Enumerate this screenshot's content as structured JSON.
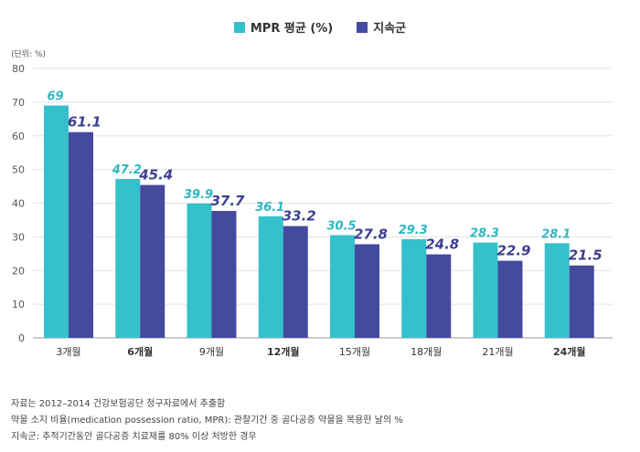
{
  "legend": {
    "items": [
      {
        "label": "MPR 평균 (%)",
        "color": "#35c0cb"
      },
      {
        "label": "지속군",
        "color": "#444a9e"
      }
    ]
  },
  "unit_label": "(단위: %)",
  "notes": [
    "자료는 2012–2014 건강보험공단 청구자료에서 추출함",
    "약물 소지 비율(medication possession ratio, MPR): 관찰기간 중 골다공증 약물을 복용한 날의 %",
    "지속군: 추적기간동안 골다공증 치료제를 80% 이상 처방한 경우"
  ],
  "chart_data": {
    "type": "bar",
    "categories": [
      "3개월",
      "6개월",
      "9개월",
      "12개월",
      "15개월",
      "18개월",
      "21개월",
      "24개월"
    ],
    "bold_categories": [
      "6개월",
      "12개월",
      "24개월"
    ],
    "series": [
      {
        "name": "MPR 평균 (%)",
        "color": "#35c0cb",
        "label_color": "#2fb6c2",
        "values": [
          69,
          47.2,
          39.9,
          36.1,
          30.5,
          29.3,
          28.3,
          28.1
        ]
      },
      {
        "name": "지속군",
        "color": "#444a9e",
        "label_color": "#3d3f8f",
        "values": [
          61.1,
          45.4,
          37.7,
          33.2,
          27.8,
          24.8,
          22.9,
          21.5
        ]
      }
    ],
    "ylim": [
      0,
      80
    ],
    "yticks": [
      0,
      10,
      20,
      30,
      40,
      50,
      60,
      70,
      80
    ],
    "grid": true,
    "legend_position": "top-center"
  }
}
